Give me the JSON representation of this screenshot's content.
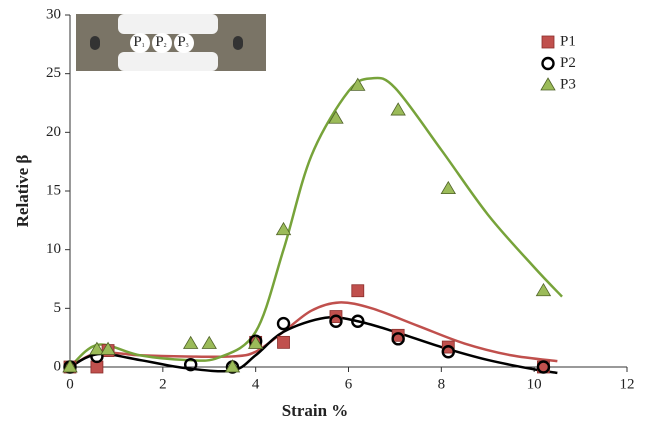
{
  "chart_data": {
    "type": "scatter",
    "xlabel": "Strain %",
    "ylabel": "Relative β",
    "xlim": [
      0,
      12
    ],
    "ylim": [
      0,
      30
    ],
    "xticks": [
      0,
      2,
      4,
      6,
      8,
      10,
      12
    ],
    "yticks": [
      0,
      5,
      10,
      15,
      20,
      25,
      30
    ],
    "legend": "upper right",
    "inset_labels": [
      [
        "P",
        "1"
      ],
      [
        "P",
        "2"
      ],
      [
        "P",
        "3"
      ]
    ],
    "series": [
      {
        "name": "P1",
        "color": "#c0504d",
        "marker": "square",
        "x": [
          0,
          0.58,
          0.82,
          4.0,
          4.6,
          5.73,
          6.2,
          7.07,
          8.15,
          10.2
        ],
        "values": [
          0,
          0,
          1.4,
          2.1,
          2.1,
          4.3,
          6.5,
          2.7,
          1.7,
          0
        ],
        "fit": {
          "color": "#c0504d",
          "x": [
            0,
            0.6,
            1.5,
            2.5,
            3.5,
            4.0,
            4.6,
            5.2,
            5.8,
            6.5,
            7.5,
            8.5,
            9.5,
            10.5
          ],
          "values": [
            0,
            1.2,
            1.0,
            0.9,
            0.9,
            1.3,
            3.0,
            4.8,
            5.5,
            5.0,
            3.5,
            2.0,
            1.0,
            0.5
          ]
        }
      },
      {
        "name": "P2",
        "color": "#000000",
        "marker": "circle",
        "x": [
          0,
          0.58,
          2.6,
          3.5,
          4.0,
          4.6,
          5.73,
          6.2,
          7.07,
          8.15,
          10.2
        ],
        "values": [
          0,
          0.9,
          0.2,
          0,
          2.2,
          3.7,
          3.9,
          3.9,
          2.4,
          1.3,
          0
        ],
        "fit": {
          "color": "#000000",
          "x": [
            0,
            0.6,
            1.5,
            2.5,
            3.5,
            4.0,
            4.6,
            5.5,
            6.2,
            7.0,
            8.0,
            9.0,
            10.0,
            10.5
          ],
          "values": [
            0,
            1.1,
            0.6,
            -0.1,
            -0.3,
            1.0,
            3.0,
            4.2,
            3.9,
            3.0,
            1.7,
            0.6,
            -0.2,
            -0.5
          ]
        }
      },
      {
        "name": "P3",
        "color": "#9bbb59",
        "marker": "triangle",
        "x": [
          0,
          0.58,
          0.82,
          2.6,
          3.0,
          3.5,
          4.0,
          4.6,
          5.73,
          6.2,
          7.07,
          8.15,
          10.2
        ],
        "values": [
          0,
          1.5,
          1.5,
          2.0,
          2.0,
          0,
          2.0,
          11.7,
          21.2,
          24.0,
          21.9,
          15.2,
          6.5
        ],
        "fit": {
          "color": "#77a33a",
          "x": [
            0,
            0.6,
            1.5,
            2.5,
            3.2,
            4.0,
            4.6,
            5.2,
            6.0,
            6.5,
            7.0,
            8.0,
            9.0,
            10.0,
            10.6
          ],
          "values": [
            0,
            1.9,
            1.0,
            0.6,
            0.8,
            3.0,
            10.0,
            18.0,
            23.5,
            24.6,
            23.8,
            18.5,
            13.0,
            8.5,
            6.0
          ]
        }
      }
    ]
  }
}
